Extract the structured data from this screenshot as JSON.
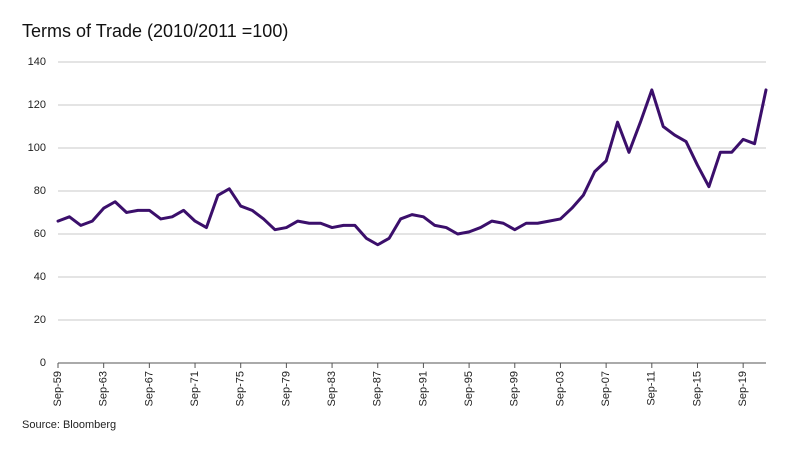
{
  "chart_data": {
    "type": "line",
    "title": "Terms of Trade (2010/2011 =100)",
    "source": "Source: Bloomberg",
    "categories": [
      "Sep-59",
      null,
      null,
      null,
      "Sep-63",
      null,
      null,
      null,
      "Sep-67",
      null,
      null,
      null,
      "Sep-71",
      null,
      null,
      null,
      "Sep-75",
      null,
      null,
      null,
      "Sep-79",
      null,
      null,
      null,
      "Sep-83",
      null,
      null,
      null,
      "Sep-87",
      null,
      null,
      null,
      "Sep-91",
      null,
      null,
      null,
      "Sep-95",
      null,
      null,
      null,
      "Sep-99",
      null,
      null,
      null,
      "Sep-03",
      null,
      null,
      null,
      "Sep-07",
      null,
      null,
      null,
      "Sep-11",
      null,
      null,
      null,
      "Sep-15",
      null,
      null,
      null,
      "Sep-19",
      null,
      null
    ],
    "values": [
      66,
      68,
      64,
      66,
      72,
      75,
      70,
      71,
      71,
      67,
      68,
      71,
      66,
      63,
      78,
      81,
      73,
      71,
      67,
      62,
      63,
      66,
      65,
      65,
      63,
      64,
      64,
      58,
      55,
      58,
      67,
      69,
      68,
      64,
      63,
      60,
      61,
      63,
      66,
      65,
      62,
      65,
      65,
      66,
      67,
      72,
      78,
      89,
      94,
      112,
      98,
      112,
      127,
      110,
      106,
      103,
      92,
      82,
      98,
      98,
      104,
      102,
      127
    ],
    "color": "#3b0f6b",
    "ylim": [
      0,
      140
    ],
    "yticks": [
      0,
      20,
      40,
      60,
      80,
      100,
      120,
      140
    ],
    "grid": true
  }
}
